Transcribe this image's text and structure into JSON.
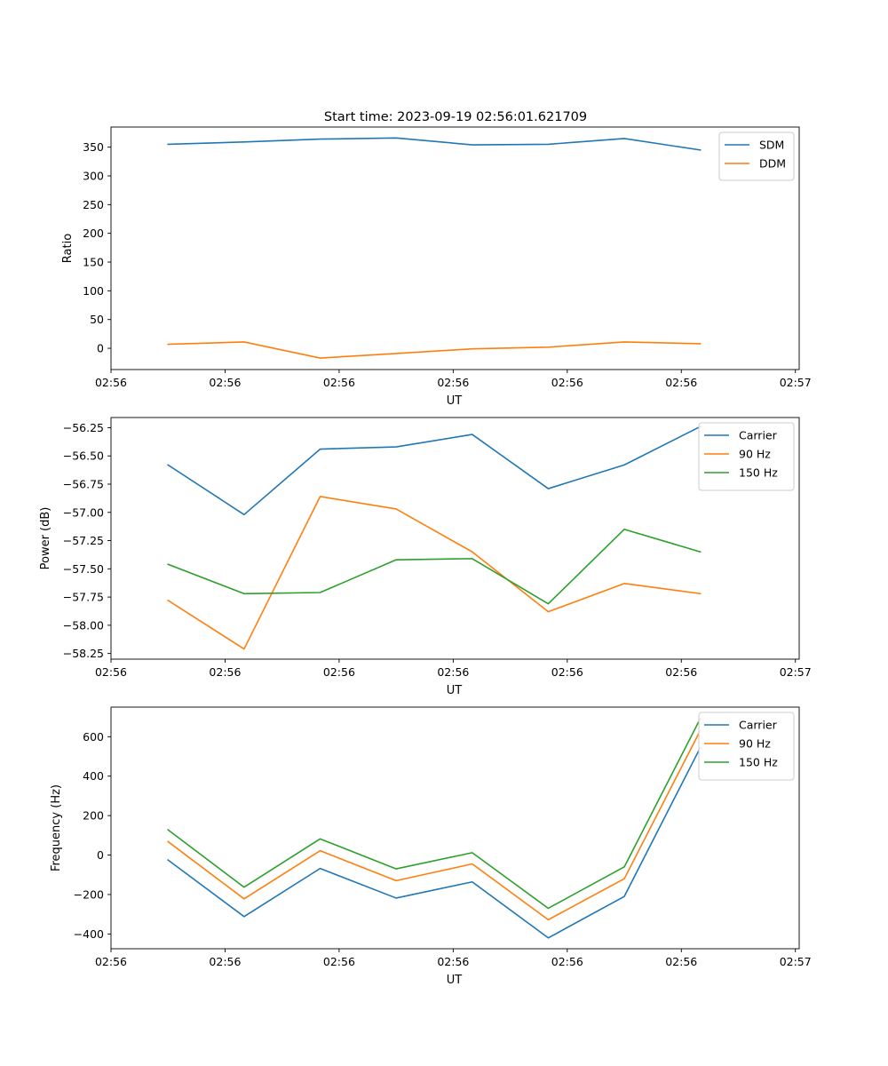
{
  "figure_title": "Start time: 2023-09-19 02:56:01.621709",
  "colors": {
    "blue": "#1f77b4",
    "orange": "#ff7f0e",
    "green": "#2ca02c"
  },
  "chart_data": [
    {
      "type": "line",
      "title": "Start time: 2023-09-19 02:56:01.621709",
      "xlabel": "UT",
      "ylabel": "Ratio",
      "x": [
        0,
        1,
        2,
        3,
        4,
        5,
        6,
        7
      ],
      "xlim": [
        -0.75,
        8.3
      ],
      "x_ticks": [
        -0.75,
        0.75,
        2.25,
        3.75,
        5.25,
        6.75,
        8.25
      ],
      "x_tick_labels": [
        "02:56",
        "02:56",
        "02:56",
        "02:56",
        "02:56",
        "02:56",
        "02:57"
      ],
      "ylim": [
        -37,
        385
      ],
      "y_ticks": [
        0,
        50,
        100,
        150,
        200,
        250,
        300,
        350
      ],
      "y_tick_labels": [
        "0",
        "50",
        "100",
        "150",
        "200",
        "250",
        "300",
        "350"
      ],
      "legend_position": "top-right",
      "series": [
        {
          "name": "SDM",
          "color": "#1f77b4",
          "values": [
            355,
            359,
            364,
            366,
            354,
            355,
            365,
            345
          ]
        },
        {
          "name": "DDM",
          "color": "#ff7f0e",
          "values": [
            7,
            11,
            -17,
            -9,
            -1,
            2,
            11,
            8
          ]
        }
      ]
    },
    {
      "type": "line",
      "title": "",
      "xlabel": "UT",
      "ylabel": "Power (dB)",
      "x": [
        0,
        1,
        2,
        3,
        4,
        5,
        6,
        7
      ],
      "xlim": [
        -0.75,
        8.3
      ],
      "x_ticks": [
        -0.75,
        0.75,
        2.25,
        3.75,
        5.25,
        6.75,
        8.25
      ],
      "x_tick_labels": [
        "02:56",
        "02:56",
        "02:56",
        "02:56",
        "02:56",
        "02:56",
        "02:57"
      ],
      "ylim": [
        -58.3,
        -56.16
      ],
      "y_ticks": [
        -58.25,
        -58.0,
        -57.75,
        -57.5,
        -57.25,
        -57.0,
        -56.75,
        -56.5,
        -56.25
      ],
      "y_tick_labels": [
        "−58.25",
        "−58.00",
        "−57.75",
        "−57.50",
        "−57.25",
        "−57.00",
        "−56.75",
        "−56.50",
        "−56.25"
      ],
      "legend_position": "top-right",
      "series": [
        {
          "name": "Carrier",
          "color": "#1f77b4",
          "values": [
            -56.58,
            -57.02,
            -56.44,
            -56.42,
            -56.31,
            -56.79,
            -56.58,
            -56.24
          ]
        },
        {
          "name": "90 Hz",
          "color": "#ff7f0e",
          "values": [
            -57.78,
            -58.21,
            -56.86,
            -56.97,
            -57.35,
            -57.88,
            -57.63,
            -57.72
          ]
        },
        {
          "name": "150 Hz",
          "color": "#2ca02c",
          "values": [
            -57.46,
            -57.72,
            -57.71,
            -57.42,
            -57.41,
            -57.81,
            -57.15,
            -57.35
          ]
        }
      ]
    },
    {
      "type": "line",
      "title": "",
      "xlabel": "UT",
      "ylabel": "Frequency (Hz)",
      "x": [
        0,
        1,
        2,
        3,
        4,
        5,
        6,
        7
      ],
      "xlim": [
        -0.75,
        8.3
      ],
      "x_ticks": [
        -0.75,
        0.75,
        2.25,
        3.75,
        5.25,
        6.75,
        8.25
      ],
      "x_tick_labels": [
        "02:56",
        "02:56",
        "02:56",
        "02:56",
        "02:56",
        "02:56",
        "02:57"
      ],
      "ylim": [
        -475,
        750
      ],
      "y_ticks": [
        -400,
        -200,
        0,
        200,
        400,
        600
      ],
      "y_tick_labels": [
        "−400",
        "−200",
        "0",
        "200",
        "400",
        "600"
      ],
      "legend_position": "top-right",
      "series": [
        {
          "name": "Carrier",
          "color": "#1f77b4",
          "values": [
            -25,
            -312,
            -68,
            -218,
            -136,
            -420,
            -210,
            545
          ]
        },
        {
          "name": "90 Hz",
          "color": "#ff7f0e",
          "values": [
            68,
            -222,
            22,
            -130,
            -45,
            -328,
            -120,
            632
          ]
        },
        {
          "name": "150 Hz",
          "color": "#2ca02c",
          "values": [
            128,
            -163,
            82,
            -70,
            12,
            -270,
            -60,
            692
          ]
        }
      ]
    }
  ]
}
